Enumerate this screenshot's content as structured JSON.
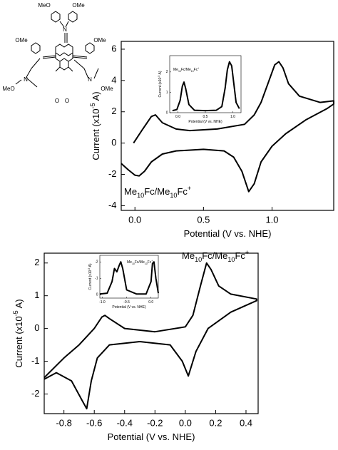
{
  "chart_data": [
    {
      "type": "line",
      "color": "#000000",
      "x": [
        -0.1,
        -0.05,
        0.0,
        0.03,
        0.07,
        0.12,
        0.2,
        0.3,
        0.5,
        0.65,
        0.72,
        0.78,
        0.83,
        0.87,
        0.92,
        1.0,
        1.1,
        1.25,
        1.4,
        1.45,
        1.45,
        1.35,
        1.2,
        1.12,
        1.08,
        1.05,
        1.02,
        0.97,
        0.92,
        0.87,
        0.8,
        0.6,
        0.4,
        0.3,
        0.2,
        0.15,
        0.12,
        0.05,
        -0.01
      ],
      "values": [
        -1.3,
        -1.7,
        -2.05,
        -2.1,
        -1.8,
        -1.2,
        -0.7,
        -0.5,
        -0.4,
        -0.5,
        -0.9,
        -1.8,
        -3.1,
        -2.6,
        -1.2,
        -0.2,
        0.6,
        1.5,
        2.2,
        2.5,
        2.7,
        2.6,
        3.0,
        3.8,
        4.8,
        5.2,
        5.0,
        3.8,
        2.6,
        1.8,
        1.2,
        0.9,
        0.8,
        0.9,
        1.3,
        1.8,
        1.7,
        0.8,
        0.0
      ],
      "xlim": [
        -0.1,
        1.45
      ],
      "ylim": [
        -4.3,
        6.5
      ],
      "xticks": [
        {
          "value": 0,
          "label": "0.0"
        },
        0.5,
        {
          "value": 1,
          "label": "1.0"
        }
      ],
      "yticks": [
        -4,
        -2,
        0,
        2,
        4,
        6
      ],
      "xlabel": [
        "Potential (V vs. NHE)"
      ],
      "ylabel": [
        "Current (x10",
        "-5",
        " A)"
      ],
      "annotation": [
        "Me",
        "10",
        "Fc/Me",
        "10",
        "Fc",
        "+"
      ]
    },
    {
      "type": "line",
      "color": "#000000",
      "x": [
        -0.1,
        -0.02,
        0.04,
        0.08,
        0.11,
        0.14,
        0.2,
        0.3,
        0.5,
        0.7,
        0.8,
        0.86,
        0.9,
        0.94,
        0.98,
        1.02,
        1.06,
        1.12
      ],
      "values": [
        0.1,
        0.15,
        0.6,
        1.3,
        1.5,
        1.2,
        0.4,
        0.12,
        0.1,
        0.12,
        0.3,
        1.2,
        2.1,
        2.5,
        2.3,
        1.4,
        0.5,
        0.2
      ],
      "xlim": [
        -0.15,
        1.15
      ],
      "ylim": [
        0,
        2.8
      ],
      "xticks": [
        {
          "value": 0,
          "label": "0.0"
        },
        0.5,
        {
          "value": 1,
          "label": "1.0"
        }
      ],
      "yticks": [
        0,
        1,
        2
      ],
      "xlabel": [
        "Potential (V vs. NHE)"
      ],
      "ylabel": [
        "Current (x10",
        "-5",
        " A)"
      ],
      "annotation": [
        "Me",
        "10",
        "Fc/Me",
        "10",
        "Fc",
        "+"
      ]
    },
    {
      "type": "line",
      "color": "#000000",
      "x": [
        -0.93,
        -0.8,
        -0.7,
        -0.6,
        -0.55,
        -0.53,
        -0.5,
        -0.4,
        -0.2,
        0.0,
        0.05,
        0.1,
        0.14,
        0.17,
        0.22,
        0.3,
        0.47,
        0.47,
        0.3,
        0.15,
        0.07,
        0.02,
        -0.02,
        -0.1,
        -0.3,
        -0.5,
        -0.58,
        -0.62,
        -0.65,
        -0.68,
        -0.75,
        -0.85,
        -0.93
      ],
      "values": [
        -1.5,
        -0.9,
        -0.5,
        0.0,
        0.35,
        0.4,
        0.3,
        0.0,
        -0.1,
        0.05,
        0.4,
        1.3,
        2.0,
        1.8,
        1.3,
        1.05,
        0.9,
        0.85,
        0.5,
        0.0,
        -0.7,
        -1.45,
        -1.0,
        -0.5,
        -0.4,
        -0.5,
        -0.9,
        -1.6,
        -2.45,
        -2.2,
        -1.6,
        -1.35,
        -1.55
      ],
      "xlim": [
        -0.93,
        0.48
      ],
      "ylim": [
        -2.6,
        2.3
      ],
      "xticks": [
        -0.8,
        -0.6,
        -0.4,
        -0.2,
        {
          "value": 0,
          "label": "0.0"
        },
        0.2,
        0.4
      ],
      "yticks": [
        -2,
        -1,
        0,
        1,
        2
      ],
      "xlabel": [
        "Potential (V vs. NHE)"
      ],
      "ylabel": [
        "Current (x10",
        "-5",
        " A)"
      ],
      "annotation": [
        "Me",
        "10",
        "Fc/Me",
        "10",
        "Fc",
        "+"
      ]
    },
    {
      "type": "line",
      "color": "#000000",
      "x": [
        -1.05,
        -0.9,
        -0.8,
        -0.75,
        -0.7,
        -0.65,
        -0.62,
        -0.58,
        -0.5,
        -0.3,
        -0.1,
        0.0,
        0.03,
        0.06,
        0.1,
        0.15
      ],
      "values": [
        -0.05,
        -0.1,
        -0.8,
        -1.6,
        -1.4,
        -1.8,
        -2.0,
        -1.6,
        -0.3,
        -0.05,
        -0.05,
        -0.8,
        -1.9,
        -2.0,
        -1.0,
        -0.1
      ],
      "xlim": [
        -1.05,
        0.15
      ],
      "ylim": [
        0.2,
        -2.4
      ],
      "xticks": [
        {
          "value": -1,
          "label": "-1.0"
        },
        -0.5,
        {
          "value": 0,
          "label": "0.0"
        }
      ],
      "yticks": [
        -2,
        -1,
        0
      ],
      "xlabel": [
        "Potential (V vs. NHE)"
      ],
      "ylabel": [
        "Current (x10",
        "-5",
        " A)"
      ],
      "annotation": [
        "Me",
        "10",
        "Fc/Me",
        "10",
        "Fc",
        "+"
      ]
    }
  ],
  "structure": {
    "labels": [
      "MeO",
      "OMe",
      "N",
      "OMe",
      "N",
      "MeO",
      "OMe",
      "N",
      "OMe",
      "O",
      "O"
    ]
  }
}
